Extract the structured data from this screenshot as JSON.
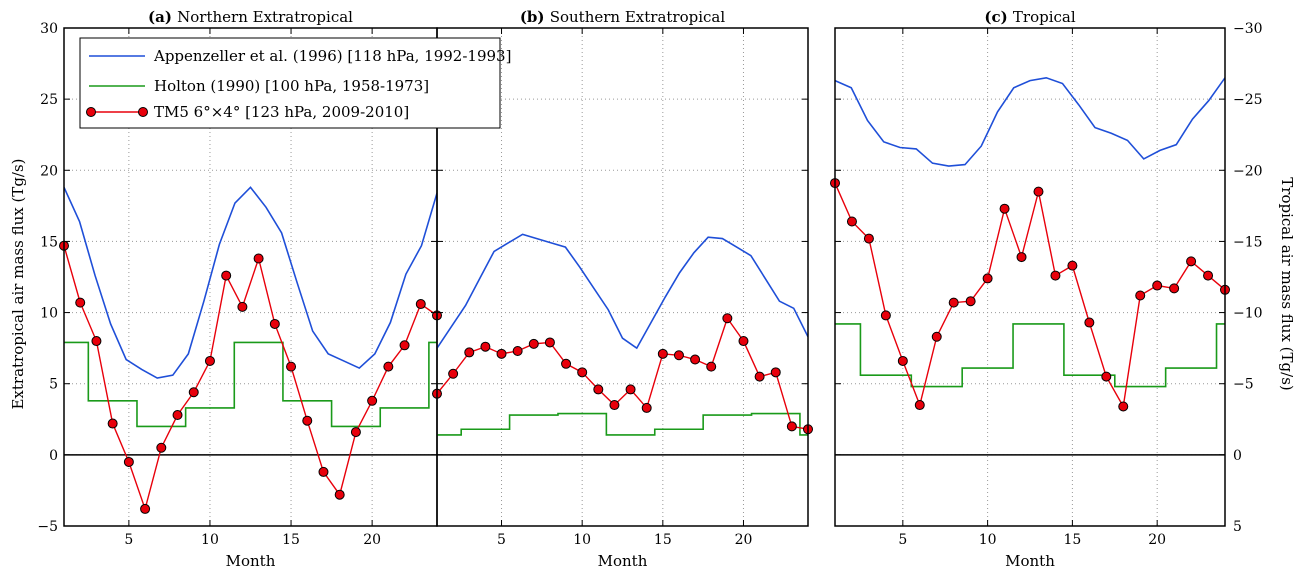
{
  "chart_data": {
    "type": "line",
    "months": [
      1,
      2,
      3,
      4,
      5,
      6,
      7,
      8,
      9,
      10,
      11,
      12,
      13,
      14,
      15,
      16,
      17,
      18,
      19,
      20,
      21,
      22,
      23,
      24
    ],
    "xlabel": "Month",
    "xticks": [
      5,
      10,
      15,
      20
    ],
    "ylabel_left": "Extratropical air mass flux (Tg/s)",
    "ylabel_right": "Tropical air mass flux (Tg/s)",
    "ylim_left": [
      -5,
      30
    ],
    "yticks_left": [
      "−5",
      "0",
      "5",
      "10",
      "15",
      "20",
      "25",
      "30"
    ],
    "yticks_right": [
      "5",
      "0",
      "−5",
      "−10",
      "−15",
      "−20",
      "−25",
      "−30"
    ],
    "grid": true,
    "legend_placement": "top-left",
    "legend": {
      "appenzeller": "Appenzeller et al. (1996) [118 hPa, 1992-1993]",
      "holton": "Holton (1990) [100 hPa, 1958-1973]",
      "tm5": "TM5 6°×4° [123 hPa, 2009-2010]"
    },
    "colors": {
      "appenzeller": "#1f4fd8",
      "holton": "#1a9a1a",
      "tm5": "#e8000b",
      "marker_edge": "#000000"
    },
    "panels": [
      {
        "label": "(a)",
        "title": "Northern Extratropical",
        "appenzeller": [
          18.8,
          16.4,
          12.6,
          9.2,
          6.7,
          6.0,
          5.4,
          5.6,
          7.1,
          10.8,
          14.8,
          17.7,
          18.8,
          17.4,
          15.6,
          12.1,
          8.7,
          7.1,
          6.6,
          6.1,
          7.1,
          9.3,
          12.7,
          14.7,
          18.4
        ],
        "holton_steps": [
          [
            0.5,
            7.9
          ],
          [
            2.5,
            3.8
          ],
          [
            5.5,
            2.0
          ],
          [
            8.5,
            3.3
          ],
          [
            11.5,
            7.9
          ],
          [
            14.5,
            3.8
          ],
          [
            17.5,
            2.0
          ],
          [
            20.5,
            3.3
          ],
          [
            23.5,
            7.9
          ]
        ],
        "tm5": [
          14.7,
          10.7,
          8.0,
          2.2,
          -0.5,
          -3.8,
          0.5,
          2.8,
          4.4,
          6.6,
          12.6,
          10.4,
          13.8,
          9.2,
          6.2,
          2.4,
          -1.2,
          -2.8,
          1.6,
          3.8,
          6.2,
          7.7,
          10.6,
          9.8
        ]
      },
      {
        "label": "(b)",
        "title": "Southern Extratropical",
        "appenzeller": [
          7.5,
          9.0,
          10.5,
          12.4,
          14.3,
          14.9,
          15.5,
          15.2,
          14.9,
          14.6,
          13.2,
          11.7,
          10.2,
          8.2,
          7.5,
          9.3,
          11.1,
          12.8,
          14.2,
          15.3,
          15.2,
          14.6,
          14.0,
          12.4,
          10.8,
          10.3,
          8.3
        ],
        "holton_steps": [
          [
            0.5,
            1.4
          ],
          [
            2.5,
            1.8
          ],
          [
            5.5,
            2.8
          ],
          [
            8.5,
            2.9
          ],
          [
            11.5,
            1.4
          ],
          [
            14.5,
            1.8
          ],
          [
            17.5,
            2.8
          ],
          [
            20.5,
            2.9
          ],
          [
            23.5,
            1.4
          ]
        ],
        "tm5": [
          4.3,
          5.7,
          7.2,
          7.6,
          7.1,
          7.3,
          7.8,
          7.9,
          6.4,
          5.8,
          4.6,
          3.5,
          4.6,
          3.3,
          7.1,
          7.0,
          6.7,
          6.2,
          9.6,
          8.0,
          5.5,
          5.8,
          2.0,
          1.8
        ]
      },
      {
        "label": "(c)",
        "title": "Tropical",
        "appenzeller": [
          26.3,
          25.8,
          23.5,
          22.0,
          21.6,
          21.5,
          20.5,
          20.3,
          20.4,
          21.7,
          24.1,
          25.8,
          26.3,
          26.5,
          26.1,
          24.6,
          23.0,
          22.6,
          22.1,
          20.8,
          21.4,
          21.8,
          23.6,
          24.9,
          26.5
        ],
        "holton_steps": [
          [
            0.5,
            9.2
          ],
          [
            2.5,
            5.6
          ],
          [
            5.5,
            4.8
          ],
          [
            8.5,
            6.1
          ],
          [
            11.5,
            9.2
          ],
          [
            14.5,
            5.6
          ],
          [
            17.5,
            4.8
          ],
          [
            20.5,
            6.1
          ],
          [
            23.5,
            9.2
          ]
        ],
        "tm5": [
          19.1,
          16.4,
          15.2,
          9.8,
          6.6,
          3.5,
          8.3,
          10.7,
          10.8,
          12.4,
          17.3,
          13.9,
          18.5,
          12.6,
          13.3,
          9.3,
          5.5,
          3.4,
          11.2,
          11.9,
          11.7,
          13.6,
          12.6,
          11.6
        ]
      }
    ]
  }
}
